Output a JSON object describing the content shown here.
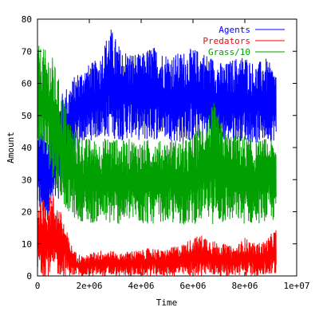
{
  "chart_data": {
    "type": "line",
    "title": "",
    "xlabel": "Time",
    "ylabel": "Amount",
    "xlim": [
      0,
      10000000
    ],
    "ylim": [
      0,
      80
    ],
    "x_ticks": [
      0,
      2000000,
      4000000,
      6000000,
      8000000,
      10000000
    ],
    "x_tick_labels": [
      "0",
      "2e+06",
      "4e+06",
      "6e+06",
      "8e+06",
      "1e+07"
    ],
    "y_ticks": [
      0,
      10,
      20,
      30,
      40,
      50,
      60,
      70,
      80
    ],
    "y_tick_labels": [
      "0",
      "10",
      "20",
      "30",
      "40",
      "50",
      "60",
      "70",
      "80"
    ],
    "grid": false,
    "legend_position": "top-right",
    "series": [
      {
        "name": "Agents",
        "color": "#0000ff",
        "x": [
          0,
          200000,
          400000,
          600000,
          800000,
          1000000,
          1200000,
          1400000,
          1600000,
          1800000,
          2000000,
          2400000,
          2800000,
          3200000,
          3600000,
          4000000,
          4400000,
          4800000,
          5200000,
          5600000,
          6000000,
          6400000,
          6800000,
          7200000,
          7600000,
          8000000,
          8400000,
          8800000,
          9200000
        ],
        "min": [
          20,
          18,
          17,
          20,
          24,
          26,
          30,
          36,
          40,
          42,
          42,
          43,
          43,
          42,
          43,
          42,
          42,
          43,
          42,
          41,
          42,
          43,
          42,
          42,
          42,
          42,
          41,
          42,
          42
        ],
        "max": [
          46,
          46,
          45,
          50,
          54,
          58,
          60,
          62,
          64,
          65,
          66,
          68,
          78,
          71,
          70,
          69,
          72,
          70,
          69,
          70,
          71,
          70,
          68,
          66,
          68,
          69,
          66,
          68,
          64
        ]
      },
      {
        "name": "Predators",
        "color": "#ff0000",
        "x": [
          0,
          200000,
          400000,
          600000,
          800000,
          1000000,
          1200000,
          1400000,
          1600000,
          1800000,
          2000000,
          2400000,
          2800000,
          3200000,
          3600000,
          4000000,
          4400000,
          4800000,
          5200000,
          5600000,
          6000000,
          6400000,
          6800000,
          7200000,
          7600000,
          8000000,
          8400000,
          8800000,
          9200000
        ],
        "min": [
          0,
          0,
          0,
          0,
          0,
          0,
          0,
          0,
          0,
          0,
          0,
          0,
          0,
          0,
          0,
          0,
          0,
          0,
          0,
          0,
          0,
          0,
          0,
          0,
          0,
          0,
          0,
          0,
          0
        ],
        "max": [
          25,
          24,
          24,
          26,
          22,
          18,
          12,
          8,
          7,
          6,
          7,
          8,
          8,
          7,
          8,
          8,
          9,
          8,
          9,
          10,
          12,
          13,
          11,
          10,
          9,
          12,
          10,
          11,
          15
        ]
      },
      {
        "name": "Grass/10",
        "color": "#00a000",
        "x": [
          0,
          200000,
          400000,
          600000,
          800000,
          1000000,
          1200000,
          1400000,
          1600000,
          1800000,
          2000000,
          2400000,
          2800000,
          3200000,
          3600000,
          4000000,
          4400000,
          4800000,
          5200000,
          5600000,
          6000000,
          6400000,
          6800000,
          7200000,
          7600000,
          8000000,
          8400000,
          8800000,
          9200000
        ],
        "min": [
          40,
          38,
          34,
          30,
          26,
          22,
          20,
          18,
          17,
          17,
          16,
          17,
          16,
          16,
          17,
          16,
          16,
          17,
          16,
          16,
          16,
          17,
          16,
          16,
          17,
          16,
          16,
          17,
          17
        ],
        "max": [
          72,
          71,
          70,
          68,
          62,
          56,
          50,
          46,
          44,
          43,
          43,
          42,
          44,
          42,
          43,
          42,
          43,
          42,
          43,
          42,
          44,
          48,
          54,
          46,
          44,
          44,
          42,
          43,
          42
        ]
      }
    ]
  }
}
